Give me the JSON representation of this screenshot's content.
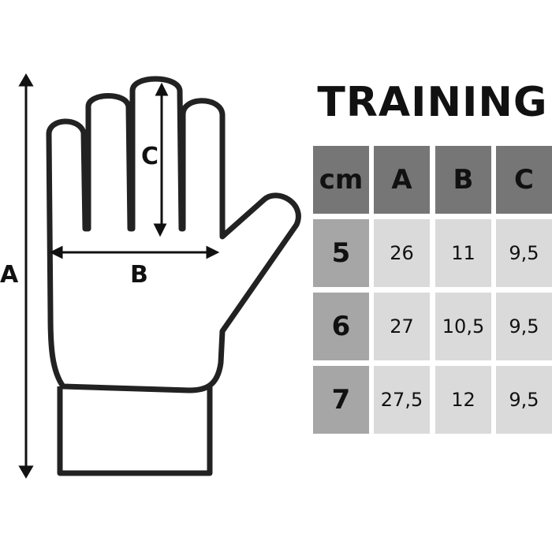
{
  "title": "TRAINING",
  "diagram_labels": {
    "a": "A",
    "b": "B",
    "c": "C"
  },
  "table": {
    "headers": [
      "cm",
      "A",
      "B",
      "C"
    ],
    "rows": [
      [
        "5",
        "26",
        "11",
        "9,5"
      ],
      [
        "6",
        "27",
        "10,5",
        "9,5"
      ],
      [
        "7",
        "27,5",
        "12",
        "9,5"
      ]
    ]
  },
  "colors": {
    "header": "#767676",
    "size_column": "#a6a6a6",
    "value_cells": "#dadada",
    "outline": "#222222"
  }
}
